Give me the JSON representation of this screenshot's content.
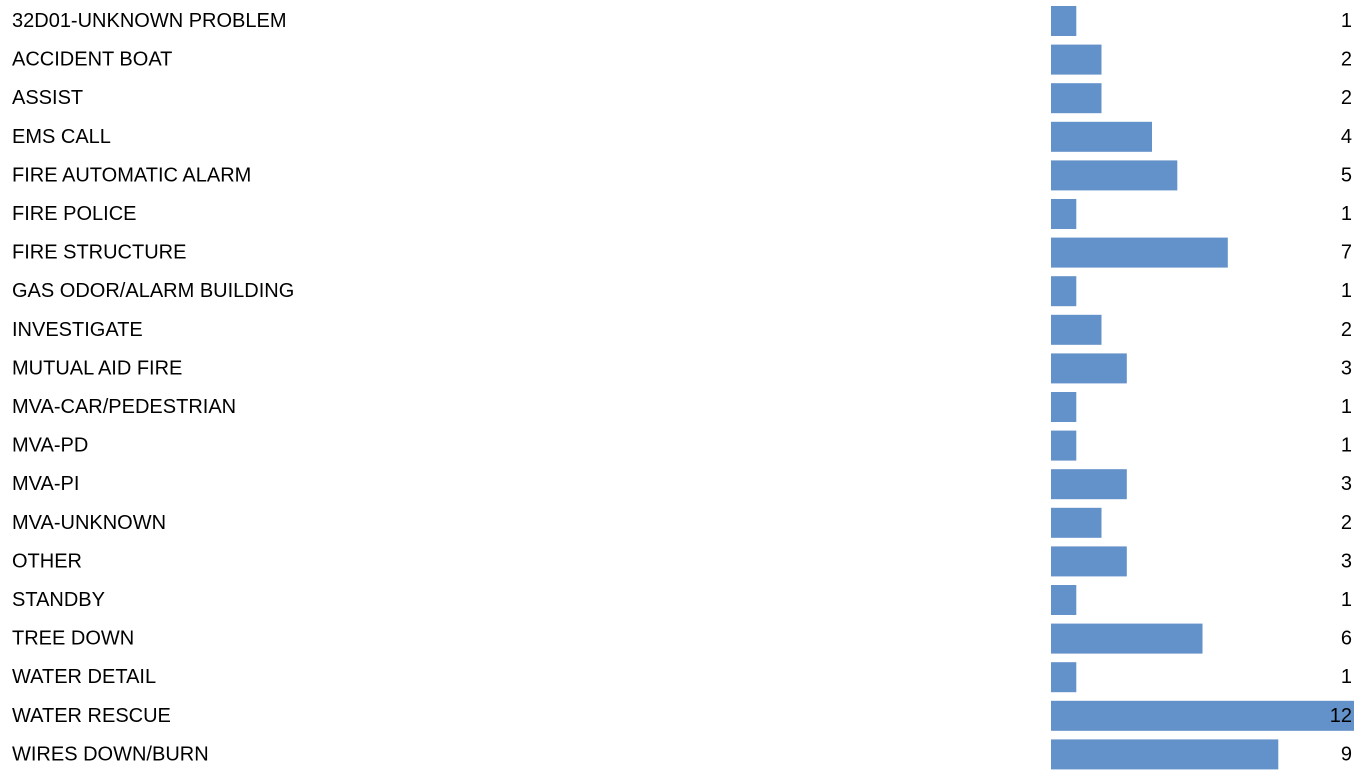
{
  "chart_data": {
    "type": "bar",
    "orientation": "horizontal",
    "title": "",
    "xlabel": "",
    "ylabel": "",
    "categories": [
      "32D01-UNKNOWN PROBLEM",
      "ACCIDENT BOAT",
      "ASSIST",
      "EMS CALL",
      "FIRE AUTOMATIC ALARM",
      "FIRE POLICE",
      "FIRE STRUCTURE",
      "GAS ODOR/ALARM BUILDING",
      "INVESTIGATE",
      "MUTUAL AID FIRE",
      "MVA-CAR/PEDESTRIAN",
      "MVA-PD",
      "MVA-PI",
      "MVA-UNKNOWN",
      "OTHER",
      "STANDBY",
      "TREE DOWN",
      "WATER DETAIL",
      "WATER RESCUE",
      "WIRES DOWN/BURN"
    ],
    "values": [
      1,
      2,
      2,
      4,
      5,
      1,
      7,
      1,
      2,
      3,
      1,
      1,
      3,
      2,
      3,
      1,
      6,
      1,
      12,
      9
    ],
    "value_labels": [
      "1",
      "2",
      "2",
      "4",
      "5",
      "1",
      "7",
      "1",
      "2",
      "3",
      "1",
      "1",
      "3",
      "2",
      "3",
      "1",
      "6",
      "1",
      "12",
      "9"
    ],
    "xlim": [
      0,
      12
    ],
    "grid": false,
    "legend": "none",
    "bar_color": "#6391C9"
  }
}
